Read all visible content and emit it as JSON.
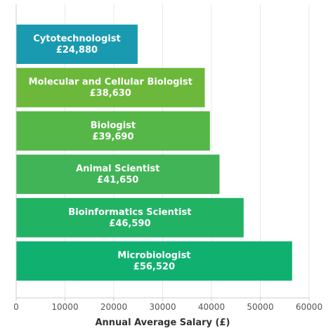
{
  "chart_data": {
    "type": "bar",
    "orientation": "horizontal",
    "categories": [
      "Cytotechnologist",
      "Molecular and Cellular Biologist",
      "Biologist",
      "Animal Scientist",
      "Bioinformatics Scientist",
      "Microbiologist"
    ],
    "values": [
      24880,
      38630,
      39690,
      41650,
      46590,
      56520
    ],
    "value_labels": [
      "£24,880",
      "£38,630",
      "£39,690",
      "£41,650",
      "£46,590",
      "£56,520"
    ],
    "colors": [
      "#1a9ab0",
      "#6cb83a",
      "#55b747",
      "#40b457",
      "#22b264",
      "#0fb070"
    ],
    "xlabel": "Annual Average Salary (£)",
    "ylabel": "",
    "title": "",
    "xlim": [
      0,
      60000
    ],
    "xticks": [
      0,
      10000,
      20000,
      30000,
      40000,
      50000,
      60000
    ],
    "xtick_labels": [
      "0",
      "10000",
      "20000",
      "30000",
      "40000",
      "50000",
      "60000"
    ],
    "grid": "vertical"
  }
}
